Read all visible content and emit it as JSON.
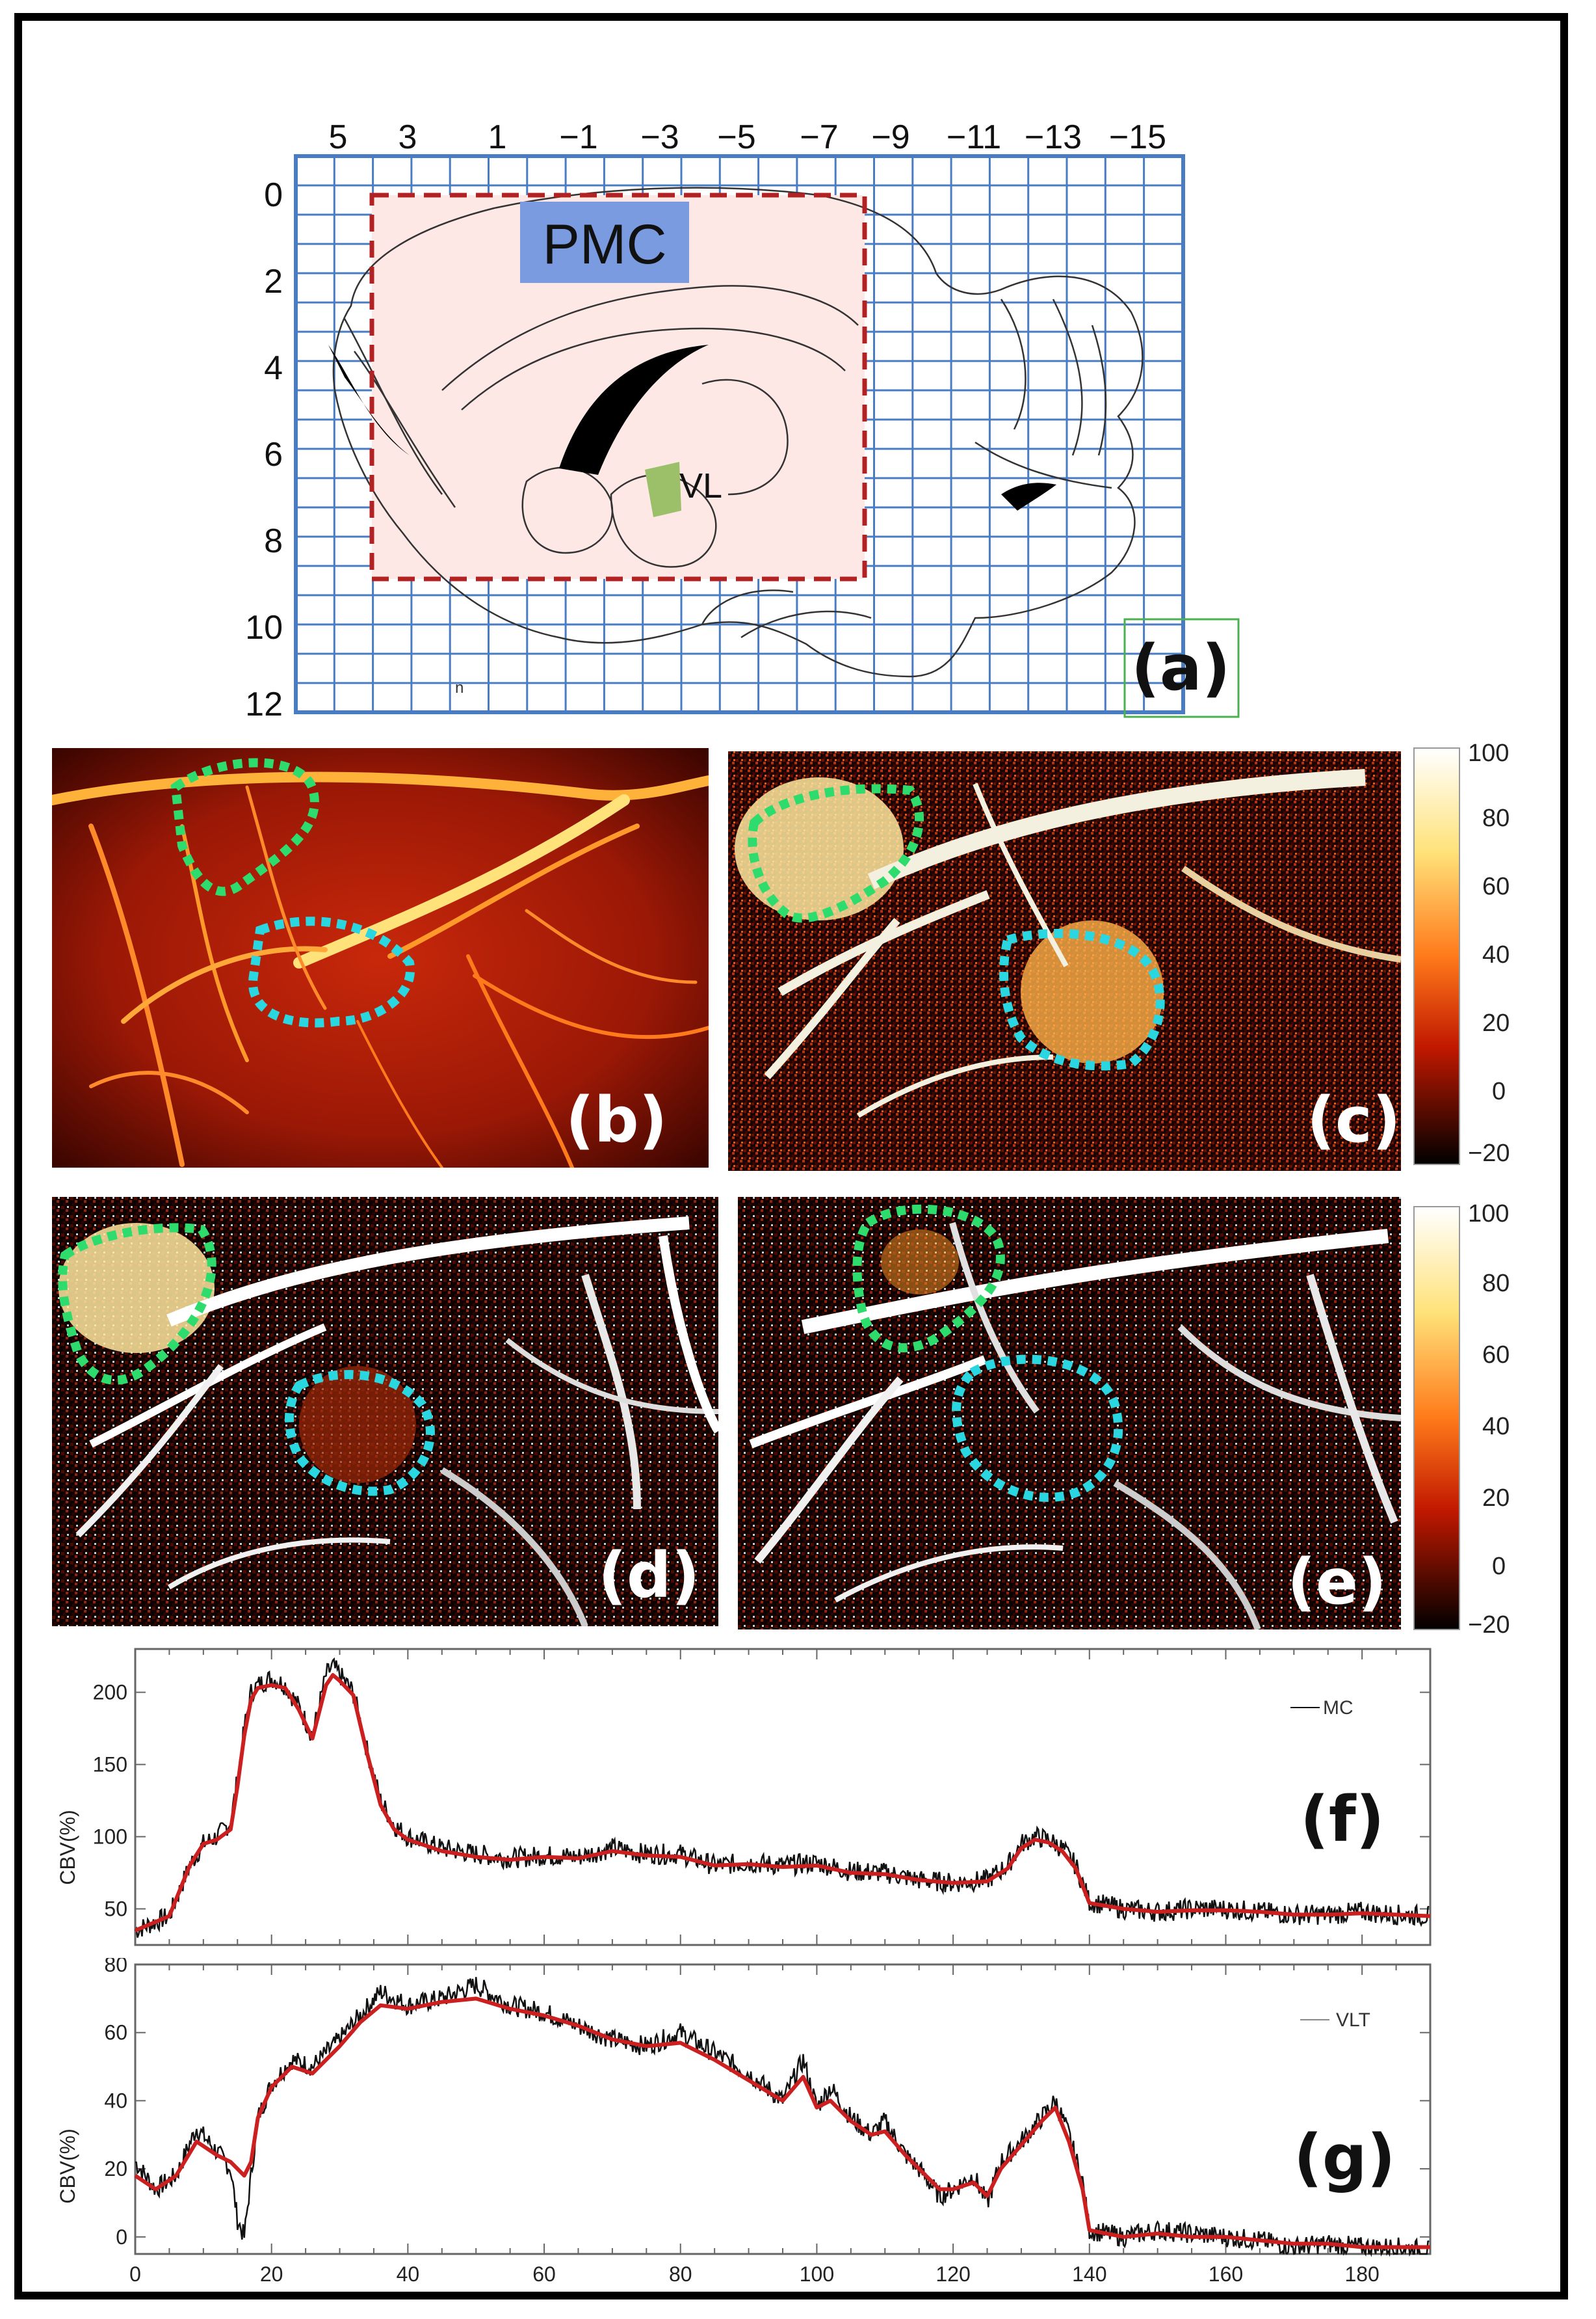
{
  "figure": {
    "panel_a": {
      "label": "(a)",
      "x_ticks": [
        "5",
        "3",
        "1",
        "−1",
        "−3",
        "−5",
        "−7",
        "−9",
        "−11",
        "−13",
        "−15"
      ],
      "y_ticks": [
        "0",
        "2",
        "4",
        "6",
        "8",
        "10",
        "12"
      ],
      "region_pmc": "PMC",
      "region_vl": "VL",
      "stray_mark": "n",
      "colors": {
        "grid": "#4a7cc4",
        "roi": "#b22222",
        "pmc": "#7b9be0",
        "vl": "#9cbf6a",
        "fill": "#fde8e6"
      }
    },
    "panel_b": {
      "label": "(b)"
    },
    "panel_c": {
      "label": "(c)"
    },
    "panel_d": {
      "label": "(d)"
    },
    "panel_e": {
      "label": "(e)"
    },
    "colorbar_top": {
      "ticks": [
        "100",
        "80",
        "60",
        "40",
        "20",
        "0",
        "−20"
      ]
    },
    "colorbar_bottom": {
      "ticks": [
        "100",
        "80",
        "60",
        "40",
        "20",
        "0",
        "−20"
      ]
    },
    "roi_colors": {
      "motor": "#2edc6e",
      "thalamus": "#2ad7e0"
    }
  },
  "chart_data": [
    {
      "type": "line",
      "panel": "(f)",
      "ylabel": "CBV(%)",
      "xlim": [
        0,
        190
      ],
      "ylim": [
        25,
        230
      ],
      "yticks": [
        50,
        100,
        150,
        200
      ],
      "legend": "MC",
      "series": [
        {
          "name": "raw",
          "color": "#111111",
          "x": [
            0,
            5,
            8,
            10,
            12,
            14,
            15,
            16,
            17,
            18,
            20,
            22,
            24,
            26,
            28,
            29,
            30,
            32,
            34,
            36,
            38,
            40,
            45,
            50,
            55,
            60,
            65,
            70,
            75,
            80,
            85,
            90,
            95,
            100,
            105,
            110,
            115,
            120,
            125,
            128,
            130,
            132,
            134,
            136,
            138,
            140,
            145,
            150,
            155,
            160,
            165,
            170,
            175,
            180,
            185,
            190
          ],
          "y": [
            35,
            45,
            80,
            95,
            100,
            110,
            140,
            175,
            200,
            205,
            210,
            205,
            190,
            170,
            212,
            218,
            212,
            200,
            160,
            125,
            108,
            100,
            92,
            88,
            85,
            87,
            86,
            92,
            88,
            88,
            80,
            82,
            80,
            82,
            76,
            75,
            70,
            68,
            70,
            80,
            95,
            100,
            98,
            92,
            80,
            55,
            50,
            48,
            50,
            50,
            48,
            46,
            46,
            48,
            46,
            45
          ]
        },
        {
          "name": "smoothed",
          "color": "#cc1f1f",
          "x": [
            0,
            5,
            8,
            10,
            12,
            14,
            15,
            16,
            17,
            18,
            20,
            22,
            24,
            26,
            28,
            29,
            30,
            32,
            34,
            36,
            38,
            40,
            45,
            50,
            55,
            60,
            65,
            70,
            75,
            80,
            85,
            90,
            95,
            100,
            105,
            110,
            115,
            120,
            125,
            128,
            130,
            132,
            134,
            136,
            138,
            140,
            145,
            150,
            155,
            160,
            165,
            170,
            175,
            180,
            185,
            190
          ],
          "y": [
            35,
            45,
            80,
            95,
            98,
            105,
            135,
            170,
            195,
            203,
            205,
            203,
            188,
            168,
            205,
            212,
            208,
            198,
            158,
            122,
            105,
            98,
            90,
            86,
            84,
            86,
            85,
            90,
            87,
            86,
            80,
            81,
            79,
            80,
            75,
            74,
            70,
            68,
            69,
            78,
            92,
            98,
            96,
            90,
            78,
            54,
            50,
            48,
            49,
            49,
            48,
            46,
            46,
            47,
            46,
            45
          ]
        }
      ]
    },
    {
      "type": "line",
      "panel": "(g)",
      "ylabel": "CBV(%)",
      "xlabel": "",
      "xlim": [
        0,
        190
      ],
      "ylim": [
        -5,
        80
      ],
      "yticks": [
        0,
        20,
        40,
        60,
        80
      ],
      "xticks": [
        0,
        20,
        40,
        60,
        80,
        100,
        120,
        140,
        160,
        180
      ],
      "legend": "VLT",
      "series": [
        {
          "name": "raw",
          "color": "#111111",
          "x": [
            0,
            3,
            6,
            9,
            12,
            14,
            15,
            16,
            17,
            18,
            20,
            23,
            26,
            30,
            33,
            36,
            40,
            45,
            50,
            55,
            60,
            65,
            70,
            75,
            80,
            85,
            90,
            95,
            98,
            100,
            102,
            105,
            108,
            110,
            113,
            115,
            118,
            120,
            123,
            125,
            127,
            130,
            133,
            135,
            137,
            139,
            140,
            145,
            150,
            155,
            160,
            165,
            170,
            175,
            180,
            185,
            190
          ],
          "y": [
            22,
            14,
            18,
            32,
            25,
            20,
            5,
            0,
            18,
            35,
            45,
            52,
            50,
            58,
            65,
            72,
            68,
            70,
            74,
            68,
            66,
            62,
            58,
            56,
            60,
            54,
            48,
            40,
            52,
            38,
            44,
            35,
            30,
            34,
            24,
            20,
            12,
            14,
            18,
            10,
            22,
            28,
            35,
            40,
            30,
            16,
            2,
            0,
            2,
            1,
            0,
            -1,
            -3,
            -2,
            -3,
            -3,
            -4
          ]
        },
        {
          "name": "smoothed",
          "color": "#cc1f1f",
          "x": [
            0,
            3,
            6,
            9,
            12,
            14,
            15,
            16,
            17,
            18,
            20,
            23,
            26,
            30,
            33,
            36,
            40,
            45,
            50,
            55,
            60,
            65,
            70,
            75,
            80,
            85,
            90,
            95,
            98,
            100,
            102,
            105,
            108,
            110,
            113,
            115,
            118,
            120,
            123,
            125,
            127,
            130,
            133,
            135,
            137,
            139,
            140,
            145,
            150,
            155,
            160,
            165,
            170,
            175,
            180,
            185,
            190
          ],
          "y": [
            18,
            14,
            18,
            28,
            24,
            22,
            20,
            18,
            22,
            35,
            44,
            50,
            48,
            56,
            63,
            68,
            67,
            69,
            70,
            67,
            65,
            62,
            58,
            56,
            57,
            52,
            46,
            40,
            47,
            38,
            40,
            34,
            30,
            31,
            24,
            20,
            14,
            14,
            16,
            12,
            20,
            27,
            34,
            38,
            28,
            14,
            2,
            0,
            1,
            0,
            0,
            -1,
            -2,
            -2,
            -3,
            -3,
            -3
          ]
        }
      ]
    }
  ]
}
